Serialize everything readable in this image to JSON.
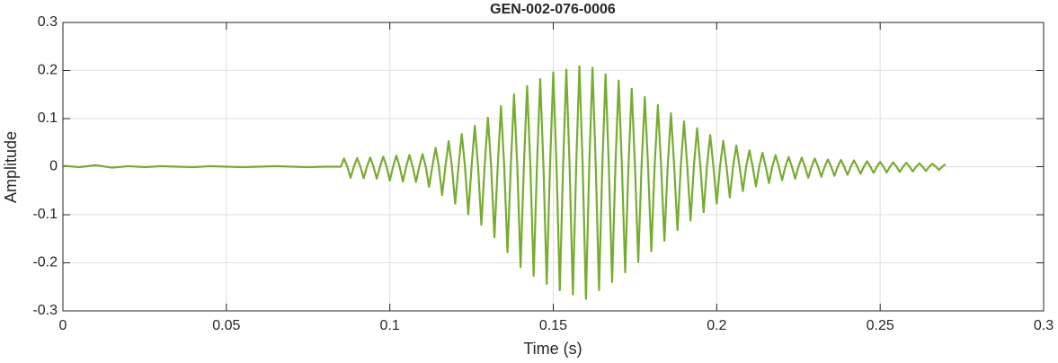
{
  "chart_data": {
    "type": "line",
    "title": "GEN-002-076-0006",
    "x_label": "Time (s)",
    "y_label": "Amplitude",
    "color": "#77ac30",
    "grid": true,
    "xlim": [
      0,
      0.3
    ],
    "xticks": [
      0,
      0.05,
      0.1,
      0.15,
      0.2,
      0.25,
      0.3
    ],
    "ylim": [
      -0.3,
      0.3
    ],
    "yticks": [
      -0.3,
      -0.2,
      -0.1,
      0,
      0.1,
      0.2,
      0.3
    ],
    "x": [
      0,
      0.005,
      0.01,
      0.015,
      0.02,
      0.025,
      0.03,
      0.035,
      0.04,
      0.045,
      0.05,
      0.055,
      0.06,
      0.065,
      0.07,
      0.075,
      0.08,
      0.085,
      0.086,
      0.087,
      0.088,
      0.089,
      0.09,
      0.091,
      0.092,
      0.093,
      0.094,
      0.095,
      0.096,
      0.097,
      0.098,
      0.099,
      0.1,
      0.101,
      0.102,
      0.103,
      0.104,
      0.105,
      0.106,
      0.107,
      0.108,
      0.109,
      0.11,
      0.111,
      0.112,
      0.113,
      0.114,
      0.115,
      0.116,
      0.117,
      0.118,
      0.119,
      0.12,
      0.121,
      0.122,
      0.123,
      0.124,
      0.125,
      0.126,
      0.127,
      0.128,
      0.129,
      0.13,
      0.131,
      0.132,
      0.133,
      0.134,
      0.135,
      0.136,
      0.137,
      0.138,
      0.139,
      0.14,
      0.141,
      0.142,
      0.143,
      0.144,
      0.145,
      0.146,
      0.147,
      0.148,
      0.149,
      0.15,
      0.151,
      0.152,
      0.153,
      0.154,
      0.155,
      0.156,
      0.157,
      0.158,
      0.159,
      0.16,
      0.161,
      0.162,
      0.163,
      0.164,
      0.165,
      0.166,
      0.167,
      0.168,
      0.169,
      0.17,
      0.171,
      0.172,
      0.173,
      0.174,
      0.175,
      0.176,
      0.177,
      0.178,
      0.179,
      0.18,
      0.181,
      0.182,
      0.183,
      0.184,
      0.185,
      0.186,
      0.187,
      0.188,
      0.189,
      0.19,
      0.191,
      0.192,
      0.193,
      0.194,
      0.195,
      0.196,
      0.197,
      0.198,
      0.199,
      0.2,
      0.201,
      0.202,
      0.203,
      0.204,
      0.205,
      0.206,
      0.207,
      0.208,
      0.209,
      0.21,
      0.211,
      0.212,
      0.213,
      0.214,
      0.215,
      0.216,
      0.217,
      0.218,
      0.219,
      0.22,
      0.221,
      0.222,
      0.223,
      0.224,
      0.225,
      0.226,
      0.227,
      0.228,
      0.229,
      0.23,
      0.231,
      0.232,
      0.233,
      0.234,
      0.235,
      0.236,
      0.237,
      0.238,
      0.239,
      0.24,
      0.241,
      0.242,
      0.243,
      0.244,
      0.245,
      0.246,
      0.247,
      0.248,
      0.249,
      0.25,
      0.251,
      0.252,
      0.253,
      0.254,
      0.255,
      0.256,
      0.257,
      0.258,
      0.259,
      0.26,
      0.261,
      0.262,
      0.263,
      0.264,
      0.265,
      0.266,
      0.267,
      0.268,
      0.269,
      0.27
    ],
    "values": [
      0.002,
      -0.001,
      0.003,
      -0.002,
      0.001,
      -0.001,
      0.001,
      0,
      -0.001,
      0.001,
      0,
      -0.001,
      0,
      0.001,
      0,
      -0.001,
      0,
      0,
      0.017,
      0,
      -0.023,
      0,
      0.018,
      0,
      -0.024,
      0,
      0.019,
      0,
      -0.025,
      0,
      0.021,
      0,
      -0.029,
      0,
      0.023,
      0,
      -0.031,
      0,
      0.024,
      0,
      -0.032,
      0,
      0.026,
      0,
      -0.042,
      0,
      0.039,
      0,
      -0.059,
      0,
      0.053,
      0,
      -0.077,
      0,
      0.068,
      0,
      -0.099,
      0,
      0.085,
      0,
      -0.121,
      0,
      0.102,
      0,
      -0.147,
      0,
      0.126,
      0,
      -0.178,
      0,
      0.15,
      0,
      -0.209,
      0,
      0.168,
      0,
      -0.227,
      0,
      0.182,
      0,
      -0.244,
      0,
      0.196,
      0,
      -0.257,
      0,
      0.202,
      0,
      -0.266,
      0,
      0.209,
      0,
      -0.275,
      0,
      0.206,
      0,
      -0.257,
      0,
      0.192,
      0,
      -0.24,
      0,
      0.179,
      0,
      -0.22,
      0,
      0.162,
      0,
      -0.198,
      0,
      0.145,
      0,
      -0.176,
      0,
      0.128,
      0,
      -0.154,
      0,
      0.111,
      0,
      -0.132,
      0,
      0.094,
      0,
      -0.112,
      0,
      0.08,
      0,
      -0.095,
      0,
      0.066,
      0,
      -0.077,
      0,
      0.054,
      0,
      -0.064,
      0,
      0.044,
      0,
      -0.051,
      0,
      0.034,
      0,
      -0.041,
      0,
      0.029,
      0,
      -0.034,
      0,
      0.024,
      0,
      -0.028,
      0,
      0.02,
      0,
      -0.025,
      0,
      0.019,
      0,
      -0.023,
      0,
      0.017,
      0,
      -0.021,
      0,
      0.015,
      0,
      -0.019,
      0,
      0.014,
      0,
      -0.017,
      0,
      0.013,
      0,
      -0.015,
      0,
      0.011,
      0,
      -0.013,
      0,
      0.01,
      0,
      -0.012,
      0,
      0.009,
      0,
      -0.011,
      0,
      0.008,
      0,
      -0.01,
      0,
      0.007,
      0,
      -0.009,
      0,
      0.006,
      0,
      -0.007,
      0,
      0.005
    ]
  }
}
